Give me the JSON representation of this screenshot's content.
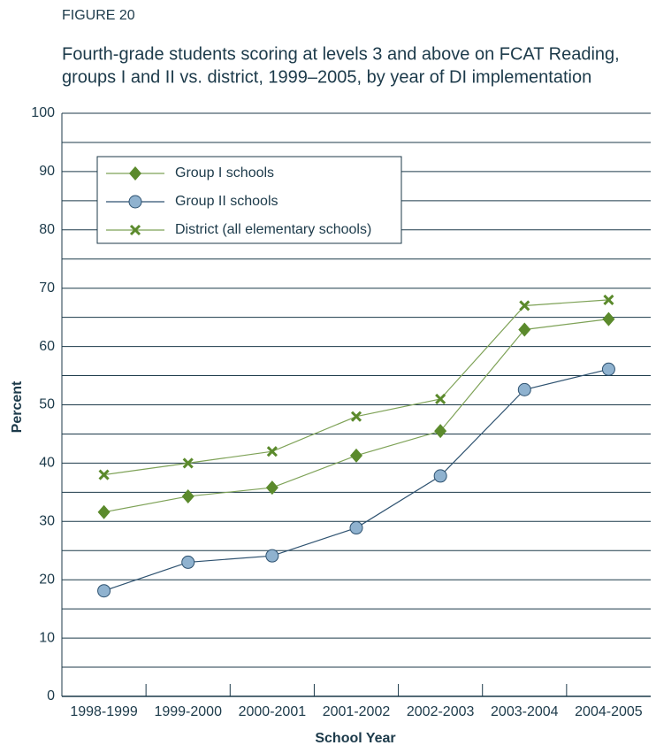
{
  "chart_data": {
    "type": "line",
    "figure_label": "FIGURE 20",
    "title": [
      "Fourth-grade students scoring at levels 3 and above on FCAT Reading,",
      "groups I and II vs. district, 1999–2005, by year of DI implementation"
    ],
    "x_label": "School Year",
    "y_label": "Percent",
    "categories": [
      "1998-1999",
      "1999-2000",
      "2000-2001",
      "2001-2002",
      "2002-2003",
      "2003-2004",
      "2004-2005"
    ],
    "series": [
      {
        "name": "Group I schools",
        "color": "#5b8a2c",
        "line_color": "#7ea257",
        "marker": "diamond",
        "values": [
          31.6,
          34.3,
          35.8,
          41.3,
          45.5,
          62.9,
          64.7
        ]
      },
      {
        "name": "Group II schools",
        "color": "#8fb2cf",
        "line_color": "#2e5270",
        "marker": "circle",
        "values": [
          18.1,
          23.0,
          24.1,
          28.9,
          37.8,
          52.6,
          56.1
        ]
      },
      {
        "name": "District (all elementary schools)",
        "color": "#5b8a2c",
        "line_color": "#7ea257",
        "marker": "x",
        "values": [
          38,
          40,
          42,
          48,
          51,
          67,
          68
        ]
      }
    ],
    "ylim": [
      0,
      100
    ],
    "yticks": [
      0,
      10,
      20,
      30,
      40,
      50,
      60,
      70,
      80,
      90,
      100
    ],
    "minor_yticks": [
      5,
      15,
      25,
      35,
      45,
      55,
      65,
      75,
      85,
      95
    ],
    "grid": true,
    "legend": "upper left"
  }
}
